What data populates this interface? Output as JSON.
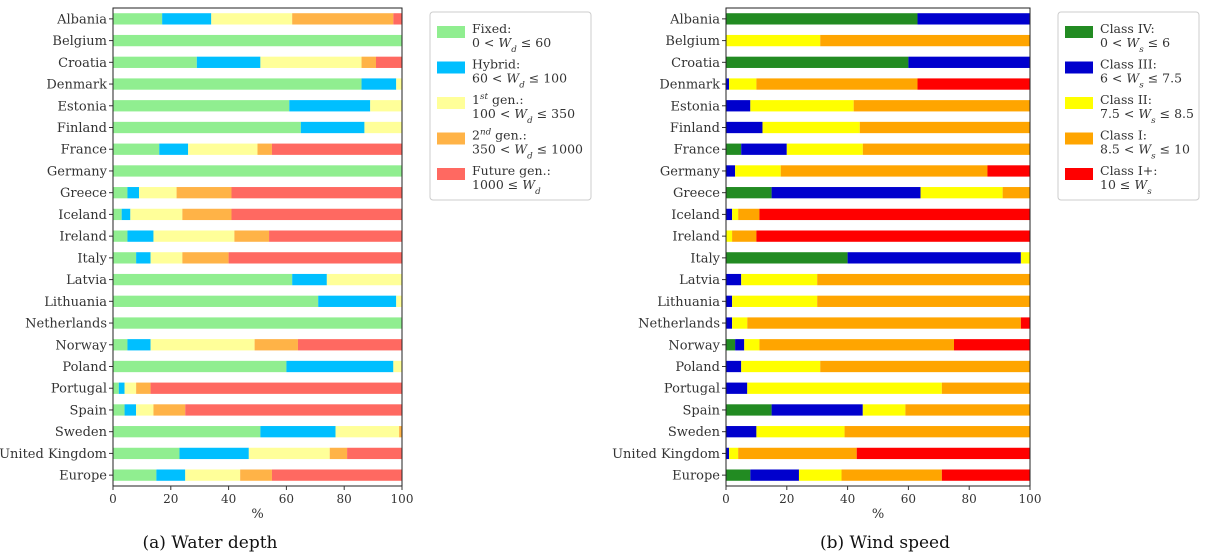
{
  "chart_data": [
    {
      "type": "bar",
      "orientation": "horizontal",
      "stacked": true,
      "caption": "(a) Water depth",
      "xlabel": "%",
      "xlim": [
        0,
        100
      ],
      "xticks": [
        "0",
        "20",
        "40",
        "60",
        "80",
        "100"
      ],
      "categories": [
        "Albania",
        "Belgium",
        "Croatia",
        "Denmark",
        "Estonia",
        "Finland",
        "France",
        "Germany",
        "Greece",
        "Iceland",
        "Ireland",
        "Italy",
        "Latvia",
        "Lithuania",
        "Netherlands",
        "Norway",
        "Poland",
        "Portugal",
        "Spain",
        "Sweden",
        "United Kingdom",
        "Europe"
      ],
      "legend_position": "right",
      "series": [
        {
          "legend": [
            "Fixed:",
            "0 < W_d ≤ 60"
          ],
          "color": "#90ee90",
          "values": [
            17,
            100,
            29,
            86,
            61,
            65,
            16,
            100,
            5,
            3,
            5,
            8,
            62,
            71,
            100,
            5,
            60,
            2,
            4,
            51,
            23,
            15
          ]
        },
        {
          "legend": [
            "Hybrid:",
            "60 < W_d ≤ 100"
          ],
          "color": "#00bfff",
          "values": [
            17,
            0,
            22,
            12,
            28,
            22,
            10,
            0,
            4,
            3,
            9,
            5,
            12,
            27,
            0,
            8,
            37,
            2,
            4,
            26,
            24,
            10
          ]
        },
        {
          "legend": [
            "1st gen.:",
            "100 < W_d ≤ 350"
          ],
          "color": "#ffff99",
          "values": [
            28,
            0,
            35,
            2,
            11,
            13,
            24,
            0,
            13,
            18,
            28,
            11,
            26,
            2,
            0,
            36,
            3,
            4,
            6,
            22,
            28,
            19
          ]
        },
        {
          "legend": [
            "2nd gen.:",
            "350 < W_d ≤ 1000"
          ],
          "color": "#ffb347",
          "values": [
            35,
            0,
            5,
            0,
            0,
            0,
            5,
            0,
            19,
            17,
            12,
            16,
            0,
            0,
            0,
            15,
            0,
            5,
            11,
            1,
            6,
            11
          ]
        },
        {
          "legend": [
            "Future gen.:",
            "1000 ≤ W_d"
          ],
          "color": "#ff6961",
          "values": [
            3,
            0,
            9,
            0,
            0,
            0,
            45,
            0,
            59,
            59,
            46,
            60,
            0,
            0,
            0,
            36,
            0,
            87,
            75,
            0,
            19,
            45
          ]
        }
      ]
    },
    {
      "type": "bar",
      "orientation": "horizontal",
      "stacked": true,
      "caption": "(b) Wind speed",
      "xlabel": "%",
      "xlim": [
        0,
        100
      ],
      "xticks": [
        "0",
        "20",
        "40",
        "60",
        "80",
        "100"
      ],
      "categories": [
        "Albania",
        "Belgium",
        "Croatia",
        "Denmark",
        "Estonia",
        "Finland",
        "France",
        "Germany",
        "Greece",
        "Iceland",
        "Ireland",
        "Italy",
        "Latvia",
        "Lithuania",
        "Netherlands",
        "Norway",
        "Poland",
        "Portugal",
        "Spain",
        "Sweden",
        "United Kingdom",
        "Europe"
      ],
      "legend_position": "right",
      "series": [
        {
          "legend": [
            "Class IV:",
            "0 < W_s ≤ 6"
          ],
          "color": "#228b22",
          "values": [
            63,
            0,
            60,
            0,
            0,
            0,
            5,
            0,
            15,
            0,
            0,
            40,
            0,
            0,
            0,
            3,
            0,
            0,
            15,
            0,
            0,
            8
          ]
        },
        {
          "legend": [
            "Class III:",
            "6 < W_s ≤ 7.5"
          ],
          "color": "#0000cd",
          "values": [
            37,
            0,
            40,
            1,
            8,
            12,
            15,
            3,
            49,
            2,
            0,
            57,
            5,
            2,
            2,
            3,
            5,
            7,
            30,
            10,
            1,
            16
          ]
        },
        {
          "legend": [
            "Class II:",
            "7.5 < W_s ≤ 8.5"
          ],
          "color": "#ffff00",
          "values": [
            0,
            31,
            0,
            9,
            34,
            32,
            25,
            15,
            27,
            2,
            2,
            3,
            25,
            28,
            5,
            5,
            26,
            64,
            14,
            29,
            3,
            14
          ]
        },
        {
          "legend": [
            "Class I:",
            "8.5 < W_s ≤ 10"
          ],
          "color": "#ffa500",
          "values": [
            0,
            69,
            0,
            53,
            58,
            56,
            55,
            68,
            9,
            7,
            8,
            0,
            70,
            70,
            90,
            64,
            69,
            29,
            41,
            61,
            39,
            33
          ]
        },
        {
          "legend": [
            "Class I+:",
            "10 ≤ W_s"
          ],
          "color": "#ff0000",
          "values": [
            0,
            0,
            0,
            37,
            0,
            0,
            0,
            14,
            0,
            89,
            90,
            0,
            0,
            0,
            3,
            25,
            0,
            0,
            0,
            0,
            57,
            29
          ]
        }
      ]
    }
  ]
}
